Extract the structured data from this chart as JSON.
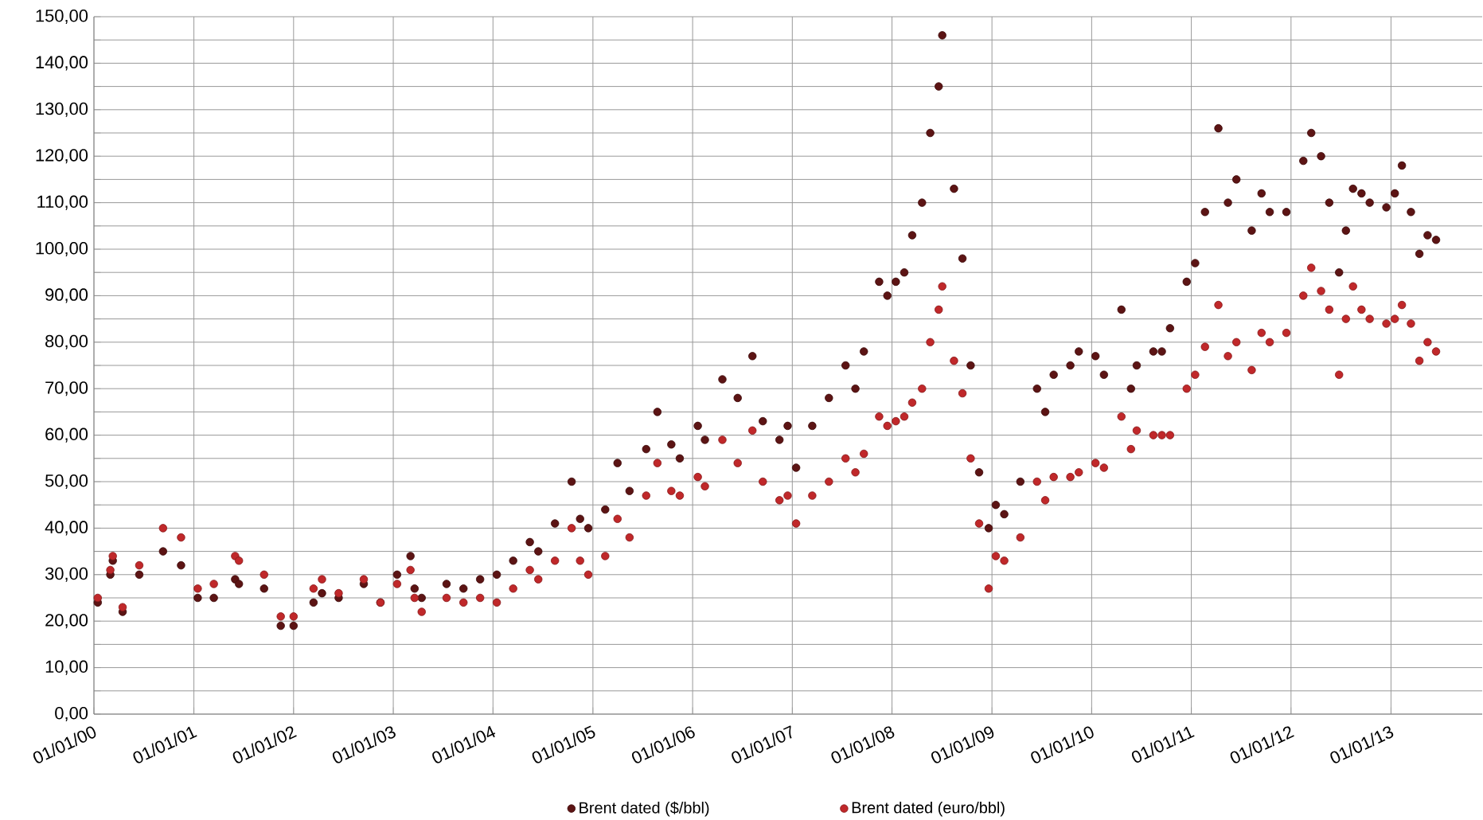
{
  "chart_data": {
    "type": "scatter",
    "x": [
      "2000-01-15",
      "2000-03-01",
      "2000-03-10",
      "2000-04-15",
      "2000-06-15",
      "2000-09-10",
      "2000-11-15",
      "2001-01-15",
      "2001-03-15",
      "2001-06-01",
      "2001-06-15",
      "2001-09-15",
      "2001-11-15",
      "2002-01-01",
      "2002-03-15",
      "2002-04-15",
      "2002-06-15",
      "2002-09-15",
      "2002-11-15",
      "2003-01-15",
      "2003-03-05",
      "2003-03-20",
      "2003-04-15",
      "2003-07-15",
      "2003-09-15",
      "2003-11-15",
      "2004-01-15",
      "2004-03-15",
      "2004-05-15",
      "2004-06-15",
      "2004-08-15",
      "2004-10-15",
      "2004-11-15",
      "2004-12-15",
      "2005-02-15",
      "2005-04-01",
      "2005-05-15",
      "2005-07-15",
      "2005-08-25",
      "2005-10-15",
      "2005-11-15",
      "2006-01-20",
      "2006-02-15",
      "2006-04-20",
      "2006-06-15",
      "2006-08-08",
      "2006-09-15",
      "2006-11-15",
      "2006-12-15",
      "2007-01-15",
      "2007-03-15",
      "2007-05-15",
      "2007-07-15",
      "2007-08-20",
      "2007-09-20",
      "2007-11-15",
      "2007-12-15",
      "2008-01-15",
      "2008-02-15",
      "2008-03-15",
      "2008-04-20",
      "2008-05-20",
      "2008-06-20",
      "2008-07-03",
      "2008-08-15",
      "2008-09-15",
      "2008-10-15",
      "2008-11-15",
      "2008-12-20",
      "2009-01-15",
      "2009-02-15",
      "2009-04-15",
      "2009-06-15",
      "2009-07-15",
      "2009-08-15",
      "2009-10-15",
      "2009-11-15",
      "2010-01-15",
      "2010-02-15",
      "2010-04-20",
      "2010-05-25",
      "2010-06-15",
      "2010-08-15",
      "2010-09-15",
      "2010-10-15",
      "2010-12-15",
      "2011-01-15",
      "2011-02-20",
      "2011-04-10",
      "2011-05-15",
      "2011-06-15",
      "2011-08-10",
      "2011-09-15",
      "2011-10-15",
      "2011-12-15",
      "2012-02-15",
      "2012-03-15",
      "2012-04-20",
      "2012-05-20",
      "2012-06-25",
      "2012-07-20",
      "2012-08-15",
      "2012-09-15",
      "2012-10-15",
      "2012-12-15",
      "2013-01-15",
      "2013-02-10",
      "2013-03-15",
      "2013-04-15",
      "2013-05-15",
      "2013-06-15"
    ],
    "series": [
      {
        "name": "Brent dated ($/bbl)",
        "color": "#5c1414",
        "values": [
          24,
          30,
          33,
          22,
          30,
          35,
          32,
          25,
          25,
          29,
          28,
          27,
          19,
          19,
          24,
          26,
          25,
          28,
          24,
          30,
          34,
          27,
          25,
          28,
          27,
          29,
          30,
          33,
          37,
          35,
          41,
          50,
          42,
          40,
          44,
          54,
          48,
          57,
          65,
          58,
          55,
          62,
          59,
          72,
          68,
          77,
          63,
          59,
          62,
          53,
          62,
          68,
          75,
          70,
          78,
          93,
          90,
          93,
          95,
          103,
          110,
          125,
          135,
          146,
          113,
          98,
          75,
          52,
          40,
          45,
          43,
          50,
          70,
          65,
          73,
          75,
          78,
          77,
          73,
          87,
          70,
          75,
          78,
          78,
          83,
          93,
          97,
          108,
          126,
          110,
          115,
          104,
          112,
          108,
          108,
          119,
          125,
          120,
          110,
          95,
          104,
          113,
          112,
          110,
          109,
          112,
          118,
          108,
          99,
          103,
          102
        ]
      },
      {
        "name": "Brent dated (euro/bbl)",
        "color": "#c0282a",
        "values": [
          25,
          31,
          34,
          23,
          32,
          40,
          38,
          27,
          28,
          34,
          33,
          30,
          21,
          21,
          27,
          29,
          26,
          29,
          24,
          28,
          31,
          25,
          22,
          25,
          24,
          25,
          24,
          27,
          31,
          29,
          33,
          40,
          33,
          30,
          34,
          42,
          38,
          47,
          54,
          48,
          47,
          51,
          49,
          59,
          54,
          61,
          50,
          46,
          47,
          41,
          47,
          50,
          55,
          52,
          56,
          64,
          62,
          63,
          64,
          67,
          70,
          80,
          87,
          92,
          76,
          69,
          55,
          41,
          27,
          34,
          33,
          38,
          50,
          46,
          51,
          51,
          52,
          54,
          53,
          64,
          57,
          61,
          60,
          60,
          60,
          70,
          73,
          79,
          88,
          77,
          80,
          74,
          82,
          80,
          82,
          90,
          96,
          91,
          87,
          73,
          85,
          92,
          87,
          85,
          84,
          85,
          88,
          84,
          76,
          80,
          78
        ]
      }
    ],
    "xlim": [
      "2000-01-01",
      "2013-12-01"
    ],
    "xticks": [
      {
        "value": "2000-01-01",
        "label": "01/01/00"
      },
      {
        "value": "2001-01-01",
        "label": "01/01/01"
      },
      {
        "value": "2002-01-01",
        "label": "01/01/02"
      },
      {
        "value": "2003-01-01",
        "label": "01/01/03"
      },
      {
        "value": "2004-01-01",
        "label": "01/01/04"
      },
      {
        "value": "2005-01-01",
        "label": "01/01/05"
      },
      {
        "value": "2006-01-01",
        "label": "01/01/06"
      },
      {
        "value": "2007-01-01",
        "label": "01/01/07"
      },
      {
        "value": "2008-01-01",
        "label": "01/01/08"
      },
      {
        "value": "2009-01-01",
        "label": "01/01/09"
      },
      {
        "value": "2010-01-01",
        "label": "01/01/10"
      },
      {
        "value": "2011-01-01",
        "label": "01/01/11"
      },
      {
        "value": "2012-01-01",
        "label": "01/01/12"
      },
      {
        "value": "2013-01-01",
        "label": "01/01/13"
      }
    ],
    "ylim": [
      0,
      150
    ],
    "yticks": [
      {
        "value": 0,
        "label": "0,00"
      },
      {
        "value": 5,
        "label": null
      },
      {
        "value": 10,
        "label": "10,00"
      },
      {
        "value": 15,
        "label": null
      },
      {
        "value": 20,
        "label": "20,00"
      },
      {
        "value": 25,
        "label": null
      },
      {
        "value": 30,
        "label": "30,00"
      },
      {
        "value": 35,
        "label": null
      },
      {
        "value": 40,
        "label": "40,00"
      },
      {
        "value": 45,
        "label": null
      },
      {
        "value": 50,
        "label": "50,00"
      },
      {
        "value": 55,
        "label": null
      },
      {
        "value": 60,
        "label": "60,00"
      },
      {
        "value": 65,
        "label": null
      },
      {
        "value": 70,
        "label": "70,00"
      },
      {
        "value": 75,
        "label": null
      },
      {
        "value": 80,
        "label": "80,00"
      },
      {
        "value": 85,
        "label": null
      },
      {
        "value": 90,
        "label": "90,00"
      },
      {
        "value": 95,
        "label": null
      },
      {
        "value": 100,
        "label": "100,00"
      },
      {
        "value": 105,
        "label": null
      },
      {
        "value": 110,
        "label": "110,00"
      },
      {
        "value": 115,
        "label": null
      },
      {
        "value": 120,
        "label": "120,00"
      },
      {
        "value": 125,
        "label": null
      },
      {
        "value": 130,
        "label": "130,00"
      },
      {
        "value": 135,
        "label": null
      },
      {
        "value": 140,
        "label": "140,00"
      },
      {
        "value": 145,
        "label": null
      },
      {
        "value": 150,
        "label": "150,00"
      }
    ],
    "grid": true,
    "legend": "bottom",
    "marker": "circle"
  }
}
